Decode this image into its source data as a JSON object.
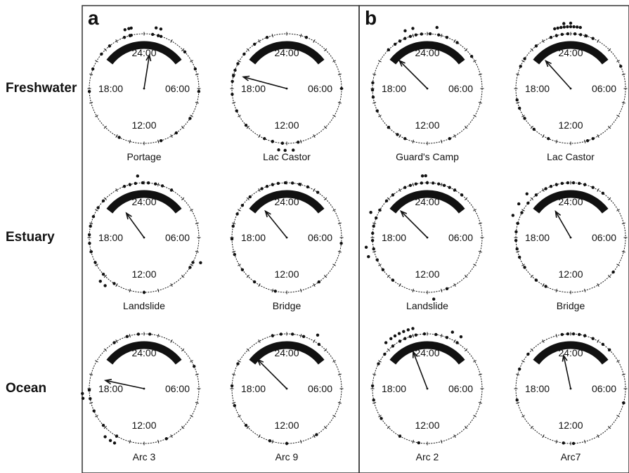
{
  "rows": [
    "Freshwater",
    "Estuary",
    "Ocean"
  ],
  "panels": [
    {
      "letter": "a"
    },
    {
      "letter": "b"
    }
  ],
  "hour_labels": {
    "top": "24:00",
    "right": "06:00",
    "bottom": "12:00",
    "left": "18:00"
  },
  "colors": {
    "ink": "#111111",
    "frame": "#333333",
    "background": "#ffffff"
  },
  "chart_data": {
    "type": "circular",
    "angular_unit": "hour of day",
    "night_band": {
      "start": "20:30",
      "end": "03:30"
    },
    "clocks": [
      {
        "panel": "a",
        "row": "Freshwater",
        "name": "Portage",
        "mean_hour": 0.6,
        "vector_length": 0.62,
        "observations": [
          22.6,
          23.0,
          23.1,
          0.6,
          1.0,
          1.2,
          3.2,
          4.6,
          6.2,
          8.2,
          9.6,
          10.8,
          13.8,
          17.8,
          19.4,
          20.6,
          21.4
        ],
        "outer_dots": [
          22.8,
          23.05,
          23.2,
          0.75,
          1.05
        ]
      },
      {
        "panel": "a",
        "row": "Freshwater",
        "name": "Lac Castor",
        "mean_hour": 19.0,
        "vector_length": 0.82,
        "observations": [
          15.2,
          16.4,
          17.6,
          18.5,
          18.9,
          19.3,
          19.8,
          20.6,
          21.6,
          22.6,
          1.4,
          11.2,
          12.3,
          13.0,
          13.6,
          6.0
        ],
        "outer_dots": [
          11.6,
          12.1,
          12.5
        ]
      },
      {
        "panel": "b",
        "row": "Freshwater",
        "name": "Guard's Camp",
        "mean_hour": 21.0,
        "vector_length": 0.72,
        "observations": [
          21.0,
          21.6,
          22.0,
          22.4,
          22.8,
          23.2,
          23.6,
          0.2,
          0.8,
          1.4,
          2.2,
          17.4,
          17.9,
          18.4,
          16.4,
          15.0,
          14.2,
          13.6,
          10.4,
          3.6
        ],
        "outer_dots": [
          22.6,
          23.1,
          0.6
        ]
      },
      {
        "panel": "b",
        "row": "Freshwater",
        "name": "Lac Castor",
        "mean_hour": 21.2,
        "vector_length": 0.68,
        "observations": [
          22.6,
          23.0,
          23.4,
          23.8,
          0.3,
          0.7,
          1.1,
          1.6,
          21.4,
          20.2,
          19.6,
          17.2,
          16.6,
          15.8,
          14.8,
          13.6,
          10.4,
          10.8,
          4.4
        ],
        "outer_dots": [
          23.0,
          23.4,
          23.8,
          0.2,
          0.6,
          23.2,
          23.6,
          0.0,
          0.4,
          23.6,
          0.0
        ]
      },
      {
        "panel": "a",
        "row": "Estuary",
        "name": "Landslide",
        "mean_hour": 21.6,
        "vector_length": 0.55,
        "observations": [
          22.6,
          23.0,
          23.4,
          23.9,
          0.3,
          0.8,
          1.3,
          2.0,
          20.8,
          20.2,
          19.5,
          18.8,
          18.2,
          17.6,
          17.0,
          16.2,
          15.2,
          14.2,
          12.0,
          8.2,
          7.8
        ],
        "outer_dots": [
          23.6,
          15.0,
          14.6,
          7.6
        ]
      },
      {
        "panel": "a",
        "row": "Estuary",
        "name": "Bridge",
        "mean_hour": 21.4,
        "vector_length": 0.62,
        "observations": [
          22.2,
          22.6,
          23.0,
          23.4,
          23.9,
          0.4,
          0.9,
          1.5,
          2.3,
          21.2,
          20.4,
          19.7,
          18.8,
          17.9,
          16.8,
          15.6,
          14.4,
          12.8,
          9.6,
          6.4
        ],
        "outer_dots": []
      },
      {
        "panel": "b",
        "row": "Estuary",
        "name": "Landslide",
        "mean_hour": 21.0,
        "vector_length": 0.68,
        "observations": [
          22.4,
          22.8,
          23.2,
          23.6,
          0.0,
          0.4,
          0.8,
          1.2,
          1.6,
          2.0,
          2.6,
          21.4,
          20.8,
          20.0,
          19.4,
          18.8,
          18.3,
          17.8,
          17.2,
          16.4,
          15.6,
          14.6,
          10.6
        ],
        "outer_dots": [
          23.7,
          23.9,
          19.6,
          17.4,
          16.8,
          11.6
        ]
      },
      {
        "panel": "b",
        "row": "Estuary",
        "name": "Bridge",
        "mean_hour": 22.0,
        "vector_length": 0.55,
        "observations": [
          22.2,
          22.6,
          23.0,
          23.4,
          23.8,
          0.2,
          0.6,
          1.0,
          1.6,
          2.4,
          21.4,
          20.6,
          19.8,
          19.0,
          18.4,
          17.8,
          17.2,
          16.6,
          15.8,
          14.6,
          13.8,
          8.6
        ],
        "outer_dots": [
          21.0,
          20.2,
          19.4
        ]
      },
      {
        "panel": "a",
        "row": "Ocean",
        "name": "Arc 3",
        "mean_hour": 18.8,
        "vector_length": 0.72,
        "observations": [
          21.8,
          22.8,
          23.6,
          0.4,
          17.9,
          17.3,
          16.4,
          15.2,
          14.0,
          10.4,
          4.4
        ],
        "outer_dots": [
          17.7,
          17.4,
          14.6,
          14.2,
          13.9
        ]
      },
      {
        "panel": "a",
        "row": "Ocean",
        "name": "Arc 9",
        "mean_hour": 21.0,
        "vector_length": 0.75,
        "observations": [
          23.0,
          23.6,
          0.4,
          1.2,
          2.4,
          19.8,
          18.2,
          16.8,
          15.2,
          13.2,
          12.0,
          9.8
        ],
        "outer_dots": [
          2.0
        ]
      },
      {
        "panel": "b",
        "row": "Ocean",
        "name": "Arc 2",
        "mean_hour": 22.6,
        "vector_length": 0.72,
        "observations": [
          22.0,
          22.4,
          22.8,
          23.2,
          23.8,
          0.6,
          1.4,
          2.2,
          21.4,
          20.6,
          19.8,
          18.2,
          17.2,
          15.8,
          14.0,
          12.6
        ],
        "outer_dots": [
          21.6,
          21.9,
          22.2,
          22.5,
          22.8,
          23.1,
          21.2,
          1.6,
          2.2
        ]
      },
      {
        "panel": "b",
        "row": "Ocean",
        "name": "Arc7",
        "mean_hour": 23.2,
        "vector_length": 0.62,
        "observations": [
          23.4,
          23.8,
          0.2,
          0.6,
          1.0,
          1.6,
          2.4,
          3.0,
          20.6,
          19.4,
          17.2,
          12.5,
          11.8,
          7.0
        ],
        "outer_dots": []
      }
    ]
  }
}
